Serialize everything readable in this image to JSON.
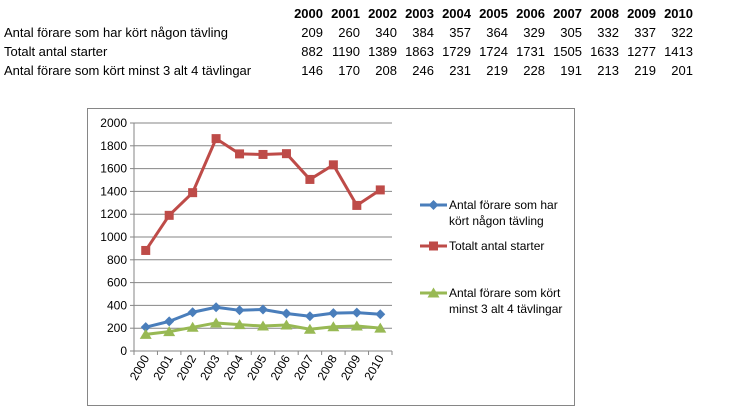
{
  "table": {
    "years": [
      "2000",
      "2001",
      "2002",
      "2003",
      "2004",
      "2005",
      "2006",
      "2007",
      "2008",
      "2009",
      "2010"
    ],
    "rows": [
      {
        "label": "Antal förare som har kört någon tävling",
        "values": [
          "209",
          "260",
          "340",
          "384",
          "357",
          "364",
          "329",
          "305",
          "332",
          "337",
          "322"
        ]
      },
      {
        "label": "Totalt antal starter",
        "values": [
          "882",
          "1190",
          "1389",
          "1863",
          "1729",
          "1724",
          "1731",
          "1505",
          "1633",
          "1277",
          "1413"
        ]
      },
      {
        "label": "Antal förare som kört minst 3 alt 4 tävlingar",
        "values": [
          "146",
          "170",
          "208",
          "246",
          "231",
          "219",
          "228",
          "191",
          "213",
          "219",
          "201"
        ]
      }
    ]
  },
  "chart_data": {
    "type": "line",
    "categories": [
      "2000",
      "2001",
      "2002",
      "2003",
      "2004",
      "2005",
      "2006",
      "2007",
      "2008",
      "2009",
      "2010"
    ],
    "series": [
      {
        "name": "Antal förare som har kört någon tävling",
        "legend_lines": [
          "Antal förare som har",
          "kört någon tävling"
        ],
        "values": [
          209,
          260,
          340,
          384,
          357,
          364,
          329,
          305,
          332,
          337,
          322
        ],
        "color": "#4a7ebb",
        "marker": "diamond"
      },
      {
        "name": "Totalt antal starter",
        "legend_lines": [
          "Totalt antal starter"
        ],
        "values": [
          882,
          1190,
          1389,
          1863,
          1729,
          1724,
          1731,
          1505,
          1633,
          1277,
          1413
        ],
        "color": "#be4b48",
        "marker": "square"
      },
      {
        "name": "Antal förare som kört minst 3 alt 4 tävlingar",
        "legend_lines": [
          "Antal förare som kört",
          "minst 3 alt 4 tävlingar"
        ],
        "values": [
          146,
          170,
          208,
          246,
          231,
          219,
          228,
          191,
          213,
          219,
          201
        ],
        "color": "#98b954",
        "marker": "triangle"
      }
    ],
    "yticks": [
      0,
      200,
      400,
      600,
      800,
      1000,
      1200,
      1400,
      1600,
      1800,
      2000
    ],
    "ylim": [
      0,
      2000
    ],
    "grid": true,
    "legend_position": "right",
    "title": "",
    "xlabel": "",
    "ylabel": ""
  }
}
